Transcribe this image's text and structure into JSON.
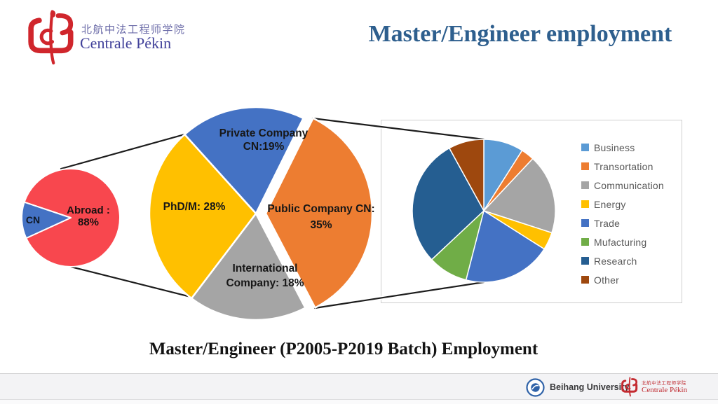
{
  "header": {
    "logo": {
      "chinese_name": "北航中法工程师学院",
      "latin_name": "Centrale Pékin"
    },
    "title": "Master/Engineer employment"
  },
  "caption": "Master/Engineer (P2005-P2019 Batch) Employment",
  "footer": {
    "beihang_label": "Beihang University",
    "cp_chinese": "北航中法工程师学院",
    "cp_latin": "Centrale Pékin"
  },
  "colors": {
    "title_blue": "#2e5f8e",
    "connector_line": "#1c1c1c",
    "legend_text": "#595959",
    "footer_background": "#f3f3f5",
    "abroad_red": "#F8474E",
    "office_blue": "#4472C4",
    "office_orange": "#ED7D31",
    "office_gray": "#A5A5A5",
    "office_yellow": "#FFC000"
  },
  "chart_data": [
    {
      "type": "pie",
      "name": "abroad-vs-cn",
      "legend_position": "none",
      "start_angle": 288.6,
      "slices": [
        {
          "label": "Abroad",
          "value": 88,
          "color": "#F8474E",
          "display": "Abroad :\n88%"
        },
        {
          "label": "CN",
          "value": 12,
          "color": "#4472C4",
          "display": "CN"
        }
      ]
    },
    {
      "type": "pie",
      "name": "employment-distribution",
      "legend_position": "none",
      "start_angle": 318,
      "slices": [
        {
          "label": "Private Company CN",
          "value": 19,
          "color": "#4472C4",
          "display": "Private Company\nCN:19%"
        },
        {
          "label": "Public Company CN",
          "value": 35,
          "color": "#ED7D31",
          "exploded": true,
          "display": "Public Company CN:\n35%"
        },
        {
          "label": "International Company",
          "value": 18,
          "color": "#A5A5A5",
          "display": "International\nCompany: 18%"
        },
        {
          "label": "PhD/M",
          "value": 28,
          "color": "#FFC000",
          "display": "PhD/M: 28%"
        }
      ]
    },
    {
      "type": "pie",
      "name": "employment-sectors",
      "legend_position": "right",
      "start_angle": 0,
      "slices": [
        {
          "label": "Business",
          "value": 9,
          "color": "#5B9BD5"
        },
        {
          "label": "Transortation",
          "value": 3,
          "color": "#ED7D31"
        },
        {
          "label": "Communication",
          "value": 18,
          "color": "#A5A5A5"
        },
        {
          "label": "Energy",
          "value": 4,
          "color": "#FFC000"
        },
        {
          "label": "Trade",
          "value": 20,
          "color": "#4472C4"
        },
        {
          "label": "Mufacturing",
          "value": 9,
          "color": "#70AD47"
        },
        {
          "label": "Research",
          "value": 29,
          "color": "#255E91"
        },
        {
          "label": "Other",
          "value": 8,
          "color": "#9E480E"
        }
      ]
    }
  ]
}
